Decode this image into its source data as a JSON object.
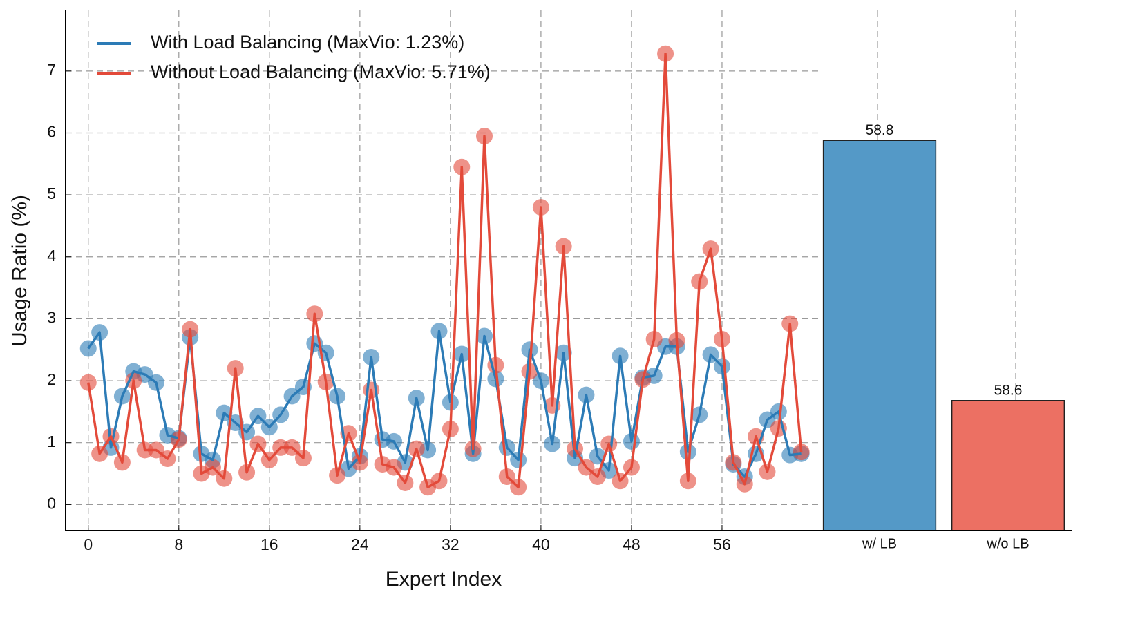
{
  "chart_data": [
    {
      "type": "line",
      "xlabel": "Expert Index",
      "ylabel": "Usage Ratio (%)",
      "x": [
        0,
        1,
        2,
        3,
        4,
        5,
        6,
        7,
        8,
        9,
        10,
        11,
        12,
        13,
        14,
        15,
        16,
        17,
        18,
        19,
        20,
        21,
        22,
        23,
        24,
        25,
        26,
        27,
        28,
        29,
        30,
        31,
        32,
        33,
        34,
        35,
        36,
        37,
        38,
        39,
        40,
        41,
        42,
        43,
        44,
        45,
        46,
        47,
        48,
        49,
        50,
        51,
        52,
        53,
        54,
        55,
        56,
        57,
        58,
        59,
        60,
        61,
        62,
        63
      ],
      "series": [
        {
          "name": "With Load Balancing (MaxVio: 1.23%)",
          "color": "#2c7bb6",
          "values": [
            2.52,
            2.78,
            0.92,
            1.75,
            2.15,
            2.1,
            1.97,
            1.12,
            1.07,
            2.7,
            0.82,
            0.72,
            1.48,
            1.32,
            1.17,
            1.43,
            1.25,
            1.45,
            1.75,
            1.9,
            2.6,
            2.45,
            1.75,
            0.58,
            0.78,
            2.38,
            1.05,
            1.02,
            0.68,
            1.72,
            0.88,
            2.8,
            1.65,
            2.43,
            0.82,
            2.72,
            2.03,
            0.92,
            0.72,
            2.5,
            2.0,
            0.98,
            2.45,
            0.75,
            1.77,
            0.78,
            0.55,
            2.4,
            1.02,
            2.05,
            2.08,
            2.55,
            2.55,
            0.85,
            1.45,
            2.42,
            2.23,
            0.65,
            0.45,
            0.82,
            1.37,
            1.5,
            0.8,
            0.82
          ]
        },
        {
          "name": "Without Load Balancing (MaxVio: 5.71%)",
          "color": "#e34a3a",
          "values": [
            1.97,
            0.82,
            1.1,
            0.68,
            2.0,
            0.88,
            0.88,
            0.74,
            1.05,
            2.83,
            0.5,
            0.6,
            0.42,
            2.2,
            0.52,
            0.98,
            0.72,
            0.92,
            0.92,
            0.75,
            3.08,
            1.98,
            0.47,
            1.15,
            0.68,
            1.85,
            0.65,
            0.6,
            0.35,
            0.9,
            0.28,
            0.38,
            1.22,
            5.45,
            0.9,
            5.95,
            2.25,
            0.45,
            0.28,
            2.15,
            4.8,
            1.6,
            4.17,
            0.9,
            0.6,
            0.45,
            0.98,
            0.38,
            0.6,
            2.02,
            2.67,
            7.28,
            2.65,
            0.38,
            3.6,
            4.13,
            2.67,
            0.68,
            0.33,
            1.1,
            0.53,
            1.23,
            2.92,
            0.85
          ]
        }
      ],
      "xlim": [
        -2,
        64
      ],
      "xticks": [
        0,
        8,
        16,
        24,
        32,
        40,
        48,
        56
      ],
      "ylim": [
        -0.42,
        7.98
      ],
      "yticks": [
        0,
        1,
        2,
        3,
        4,
        5,
        6,
        7
      ],
      "grid": true,
      "legend": "upper left"
    },
    {
      "type": "bar",
      "categories": [
        "w/ LB",
        "w/o LB"
      ],
      "values": [
        58.8,
        58.6
      ],
      "value_labels": [
        "58.8",
        "58.6"
      ],
      "colors": [
        "#5499c7",
        "#ec7063"
      ],
      "ylim": [
        58.5,
        58.9
      ]
    }
  ]
}
